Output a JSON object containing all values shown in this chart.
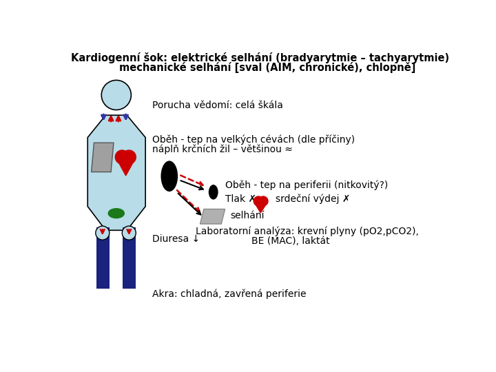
{
  "title_line1": "Kardiogenní šok: elektrické selhání (bradyarytmie – tachyarytmie)",
  "title_line2": "mechanické selhání [sval (AIM, chronické), chlopně]",
  "bg_color": "#ffffff",
  "text_color": "#000000",
  "body_fill": "#b8dce8",
  "body_stroke": "#000000",
  "head_fill": "#b8dce8",
  "leg_fill": "#1a237e",
  "arrow_red": "#cc0000",
  "arrow_blue": "#3333aa",
  "heart_color": "#cc0000",
  "lung_color": "#a0a0a0",
  "kidney_color": "#1a7a1a",
  "oval_black": "#000000",
  "gray_rect": "#b0b0b0",
  "texts": {
    "porucha": "Porucha vědomí: celá škála",
    "obeh1": "Oběh - tep na velkých cévách (dle příčiny)",
    "obeh1b": "náplň krčních žil – většinou ≈",
    "obeh2": "Oběh - tep na periferii (nitkovitý?)",
    "tlak": "Tlak ✗",
    "srdecni": "srdeční výdej ✗",
    "selhani": "selhání",
    "laboratorni": "Laboratorní analýza: krevní plyny (pO2,pCO2),",
    "laboratorni2": "BE (MAC), laktát",
    "diuresa": "Diuresa ↓",
    "akra": "Akra: chladná, zavřená periferie"
  }
}
